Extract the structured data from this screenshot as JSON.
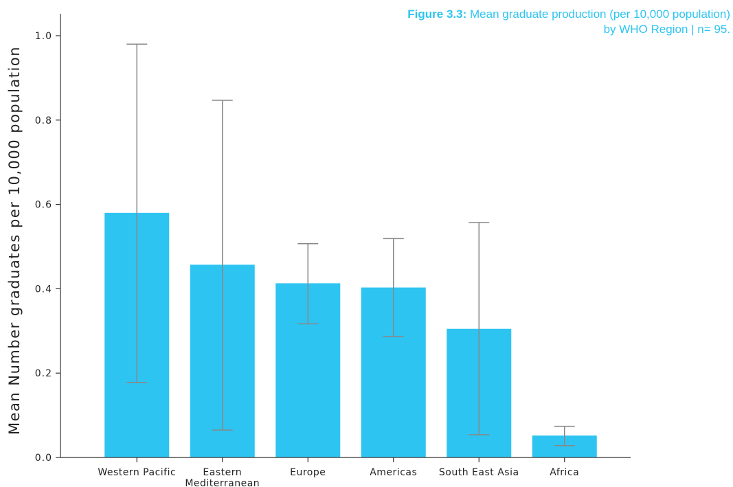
{
  "figure": {
    "label": "Figure 3.3:",
    "caption_line1": "Mean graduate production (per 10,000 population)",
    "caption_line2": "by WHO Region | n= 95."
  },
  "chart_data": {
    "type": "bar",
    "categories": [
      "Western Pacific",
      "Eastern Mediterranean",
      "Europe",
      "Americas",
      "South East Asia",
      "Africa"
    ],
    "category_lines": [
      [
        "Western Pacific"
      ],
      [
        "Eastern",
        "Mediterranean"
      ],
      [
        "Europe"
      ],
      [
        "Americas"
      ],
      [
        "South East Asia"
      ],
      [
        "Africa"
      ]
    ],
    "values": [
      0.58,
      0.457,
      0.413,
      0.403,
      0.305,
      0.052
    ],
    "error_low": [
      0.178,
      0.065,
      0.317,
      0.287,
      0.054,
      0.028
    ],
    "error_high": [
      0.98,
      0.847,
      0.507,
      0.519,
      0.557,
      0.074
    ],
    "ylabel": "Mean Number graduates per 10,000 population",
    "xlabel": "",
    "ylim": [
      0,
      1.05
    ],
    "yticks": [
      "0.0",
      "0.2",
      "0.4",
      "0.6",
      "0.8",
      "1.0"
    ],
    "grid": false,
    "bar_color": "#2ec4f1",
    "error_bar_color": "#888888"
  }
}
